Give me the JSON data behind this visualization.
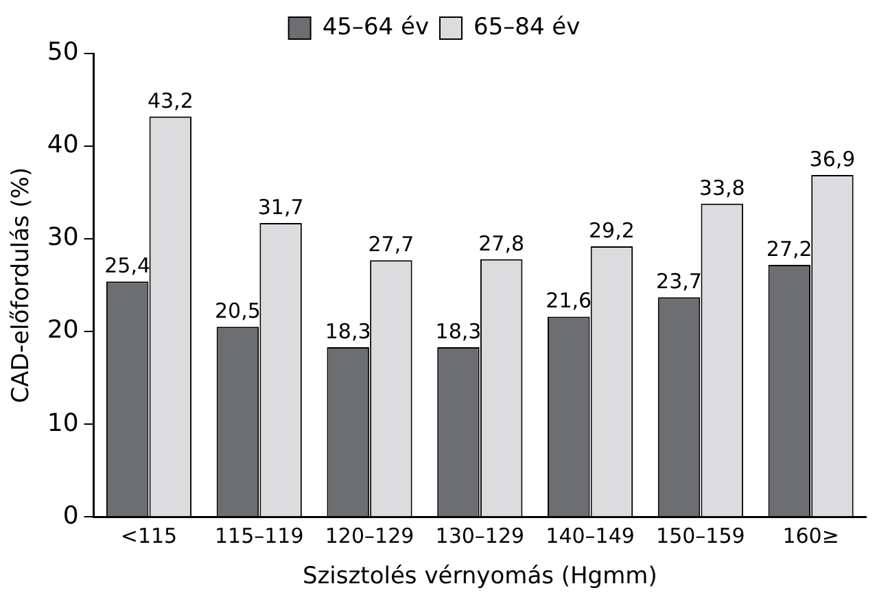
{
  "chart_data": {
    "type": "bar",
    "xlabel": "Szisztolés vérnyomás (Hgmm)",
    "ylabel": "CAD-előfordulás (%)",
    "categories": [
      "<115",
      "115–119",
      "120–129",
      "130–129",
      "140–149",
      "150–159",
      "160≥"
    ],
    "series": [
      {
        "name": "45–64 év",
        "color": "#6d6e71",
        "values": [
          25.4,
          20.5,
          18.3,
          18.3,
          21.6,
          23.7,
          27.2
        ],
        "value_labels": [
          "25,4",
          "20,5",
          "18,3",
          "18,3",
          "21,6",
          "23,7",
          "27,2"
        ]
      },
      {
        "name": "65–84 év",
        "color": "#dcdcde",
        "values": [
          43.2,
          31.7,
          27.7,
          27.8,
          29.2,
          33.8,
          36.9
        ],
        "value_labels": [
          "43,2",
          "31,7",
          "27,7",
          "27,8",
          "29,2",
          "33,8",
          "36,9"
        ]
      }
    ],
    "ylim": [
      0,
      50
    ],
    "yticks": [
      0,
      10,
      20,
      30,
      40,
      50
    ],
    "grid": false,
    "legend": "top"
  }
}
